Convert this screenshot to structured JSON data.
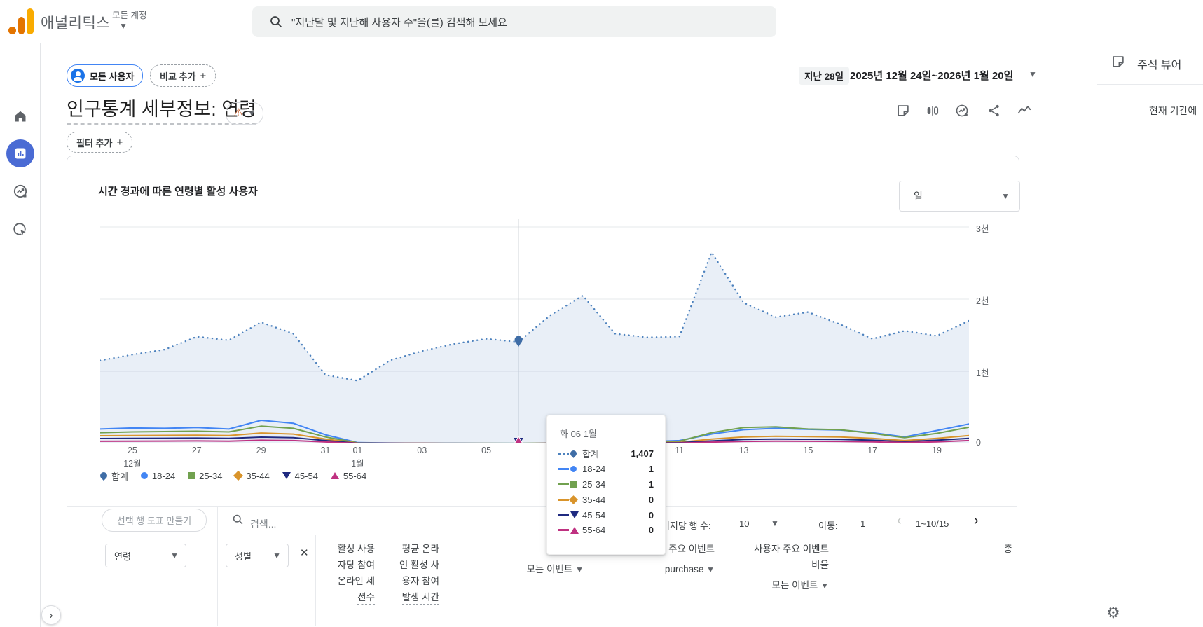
{
  "topbar": {
    "app_title": "애널리틱스",
    "account_selector": "모든 계정",
    "search_placeholder": "\"지난달 및 지난해 사용자 수\"을(를) 검색해 보세요"
  },
  "sidebar": {
    "items": [
      {
        "name": "home-icon",
        "active": false
      },
      {
        "name": "reports-icon",
        "active": true
      },
      {
        "name": "explore-icon",
        "active": false
      },
      {
        "name": "advertising-icon",
        "active": false
      },
      {
        "name": "settings-icon",
        "active": false
      }
    ]
  },
  "report_header": {
    "audience_chip": "모든 사용자",
    "add_comparison": "비교 추가",
    "date_range_label": "지난 28일",
    "date_range": "2025년 12월 24일~2026년 1월 20일",
    "title": "인구통계 세부정보: 연령",
    "add_filter": "필터 추가",
    "action_icons": [
      "note-icon",
      "compare-icon",
      "insights-icon",
      "share-icon",
      "sparkline-icon"
    ]
  },
  "chart_card": {
    "title": "시간 경과에 따른 연령별 활성 사용자",
    "granularity": "일"
  },
  "chart_data": {
    "type": "line",
    "title": "시간 경과에 따른 연령별 활성 사용자",
    "x": [
      "12월 24일",
      "12월 25일",
      "12월 26일",
      "12월 27일",
      "12월 28일",
      "12월 29일",
      "12월 30일",
      "12월 31일",
      "1월 1일",
      "1월 2일",
      "1월 3일",
      "1월 4일",
      "1월 5일",
      "1월 6일",
      "1월 7일",
      "1월 8일",
      "1월 9일",
      "1월 10일",
      "1월 11일",
      "1월 12일",
      "1월 13일",
      "1월 14일",
      "1월 15일",
      "1월 16일",
      "1월 17일",
      "1월 18일",
      "1월 19일",
      "1월 20일"
    ],
    "series": [
      {
        "name": "합계",
        "color": "#4d82be",
        "style": "dotted",
        "area": true,
        "values": [
          1150,
          1230,
          1300,
          1480,
          1430,
          1680,
          1520,
          950,
          870,
          1150,
          1280,
          1380,
          1450,
          1407,
          1780,
          2050,
          1520,
          1470,
          1480,
          2650,
          1950,
          1750,
          1820,
          1650,
          1450,
          1560,
          1490,
          1700
        ]
      },
      {
        "name": "18-24",
        "color": "#4285f4",
        "values": [
          200,
          215,
          210,
          220,
          200,
          320,
          280,
          120,
          12,
          6,
          4,
          2,
          2,
          1,
          4,
          8,
          15,
          25,
          40,
          130,
          190,
          210,
          195,
          185,
          150,
          90,
          180,
          270
        ]
      },
      {
        "name": "25-34",
        "color": "#71a14f",
        "values": [
          150,
          160,
          165,
          170,
          160,
          240,
          210,
          90,
          8,
          4,
          3,
          1,
          1,
          1,
          3,
          6,
          10,
          18,
          30,
          150,
          220,
          230,
          200,
          190,
          140,
          80,
          140,
          225
        ]
      },
      {
        "name": "35-44",
        "color": "#d9942b",
        "values": [
          107,
          110,
          112,
          115,
          110,
          145,
          130,
          60,
          5,
          3,
          2,
          1,
          1,
          0,
          2,
          4,
          6,
          10,
          15,
          60,
          90,
          100,
          95,
          90,
          70,
          40,
          70,
          110
        ]
      },
      {
        "name": "45-54",
        "color": "#1f2a80",
        "values": [
          68,
          70,
          72,
          74,
          70,
          87,
          80,
          40,
          3,
          2,
          1,
          1,
          0,
          0,
          1,
          2,
          4,
          6,
          10,
          35,
          55,
          60,
          58,
          55,
          45,
          25,
          45,
          70
        ]
      },
      {
        "name": "55-64",
        "color": "#bf3181",
        "values": [
          30,
          32,
          33,
          35,
          32,
          45,
          40,
          20,
          2,
          1,
          1,
          0,
          0,
          0,
          1,
          1,
          2,
          3,
          5,
          18,
          28,
          32,
          30,
          28,
          22,
          12,
          22,
          40
        ]
      }
    ],
    "ylim": [
      0,
      3000
    ],
    "y_ticks": [
      {
        "v": 0,
        "label": "0"
      },
      {
        "v": 1000,
        "label": "1천"
      },
      {
        "v": 2000,
        "label": "2천"
      },
      {
        "v": 3000,
        "label": "3천"
      }
    ],
    "x_ticks": [
      {
        "i": 1,
        "label": "25",
        "month": "12월"
      },
      {
        "i": 3,
        "label": "27"
      },
      {
        "i": 5,
        "label": "29"
      },
      {
        "i": 7,
        "label": "31"
      },
      {
        "i": 8,
        "label": "01",
        "month": "1월"
      },
      {
        "i": 10,
        "label": "03"
      },
      {
        "i": 12,
        "label": "05"
      },
      {
        "i": 14,
        "label": "07"
      },
      {
        "i": 16,
        "label": "09"
      },
      {
        "i": 18,
        "label": "11"
      },
      {
        "i": 20,
        "label": "13"
      },
      {
        "i": 22,
        "label": "15"
      },
      {
        "i": 24,
        "label": "17"
      },
      {
        "i": 26,
        "label": "19"
      }
    ],
    "legend": [
      {
        "label": "합계",
        "marker": "pin",
        "color": "#3f6da6"
      },
      {
        "label": "18-24",
        "marker": "circle",
        "color": "#4285f4"
      },
      {
        "label": "25-34",
        "marker": "square",
        "color": "#71a14f"
      },
      {
        "label": "35-44",
        "marker": "diamond",
        "color": "#d9942b"
      },
      {
        "label": "45-54",
        "marker": "triangle-down",
        "color": "#1f2a80"
      },
      {
        "label": "55-64",
        "marker": "triangle-up",
        "color": "#bf3181"
      }
    ],
    "hover_index": 13,
    "grid": true,
    "legend_position": "bottom"
  },
  "tooltip": {
    "date": "화 06 1월",
    "rows": [
      {
        "label": "합계",
        "value": "1,407",
        "marker": "pin",
        "color": "#3f6da6",
        "line": "#4d82be",
        "dotted": true
      },
      {
        "label": "18-24",
        "value": "1",
        "marker": "circle",
        "color": "#4285f4",
        "line": "#4285f4"
      },
      {
        "label": "25-34",
        "value": "1",
        "marker": "square",
        "color": "#71a14f",
        "line": "#71a14f"
      },
      {
        "label": "35-44",
        "value": "0",
        "marker": "diamond",
        "color": "#d9942b",
        "line": "#d9942b"
      },
      {
        "label": "45-54",
        "value": "0",
        "marker": "triangle-down",
        "color": "#1f2a80",
        "line": "#1f2a80"
      },
      {
        "label": "55-64",
        "value": "0",
        "marker": "triangle-up",
        "color": "#bf3181",
        "line": "#bf3181"
      }
    ]
  },
  "table": {
    "plot_rows_button": "선택 행 도표 만들기",
    "search_placeholder": "검색...",
    "rows_per_page_label": "페이지당 행 수:",
    "rows_per_page": "10",
    "goto_label": "이동:",
    "goto_value": "1",
    "pagination": "1~10/15",
    "dimension_primary": "연령",
    "dimension_secondary": "성별",
    "columns": [
      {
        "lines": [
          "활성 사용",
          "자당 참여",
          "온라인 세",
          "션수"
        ]
      },
      {
        "lines": [
          "평균 온라",
          "인 활성 사",
          "용자 참여",
          "발생 시간"
        ]
      },
      {
        "lines": [
          "이벤트 수"
        ],
        "selector": "모든 이벤트"
      },
      {
        "lines": [
          "주요 이벤트"
        ],
        "selector": "purchase"
      },
      {
        "lines": [
          "사용자 주요 이벤트",
          "비율"
        ],
        "selector": "모든 이벤트"
      },
      {
        "lines": [
          "총"
        ]
      }
    ]
  },
  "annotations_panel": {
    "title": "주석 뷰어",
    "empty_text": "현재 기간에"
  },
  "colors": {
    "accent_blue": "#1a73e8",
    "nav_active": "#4a6bd4",
    "logo_amber": "#f9ab00",
    "logo_orange": "#e37400",
    "warning": "#bf4a12",
    "total_line": "#4d82be",
    "area_fill": "rgba(70,125,190,0.12)"
  }
}
